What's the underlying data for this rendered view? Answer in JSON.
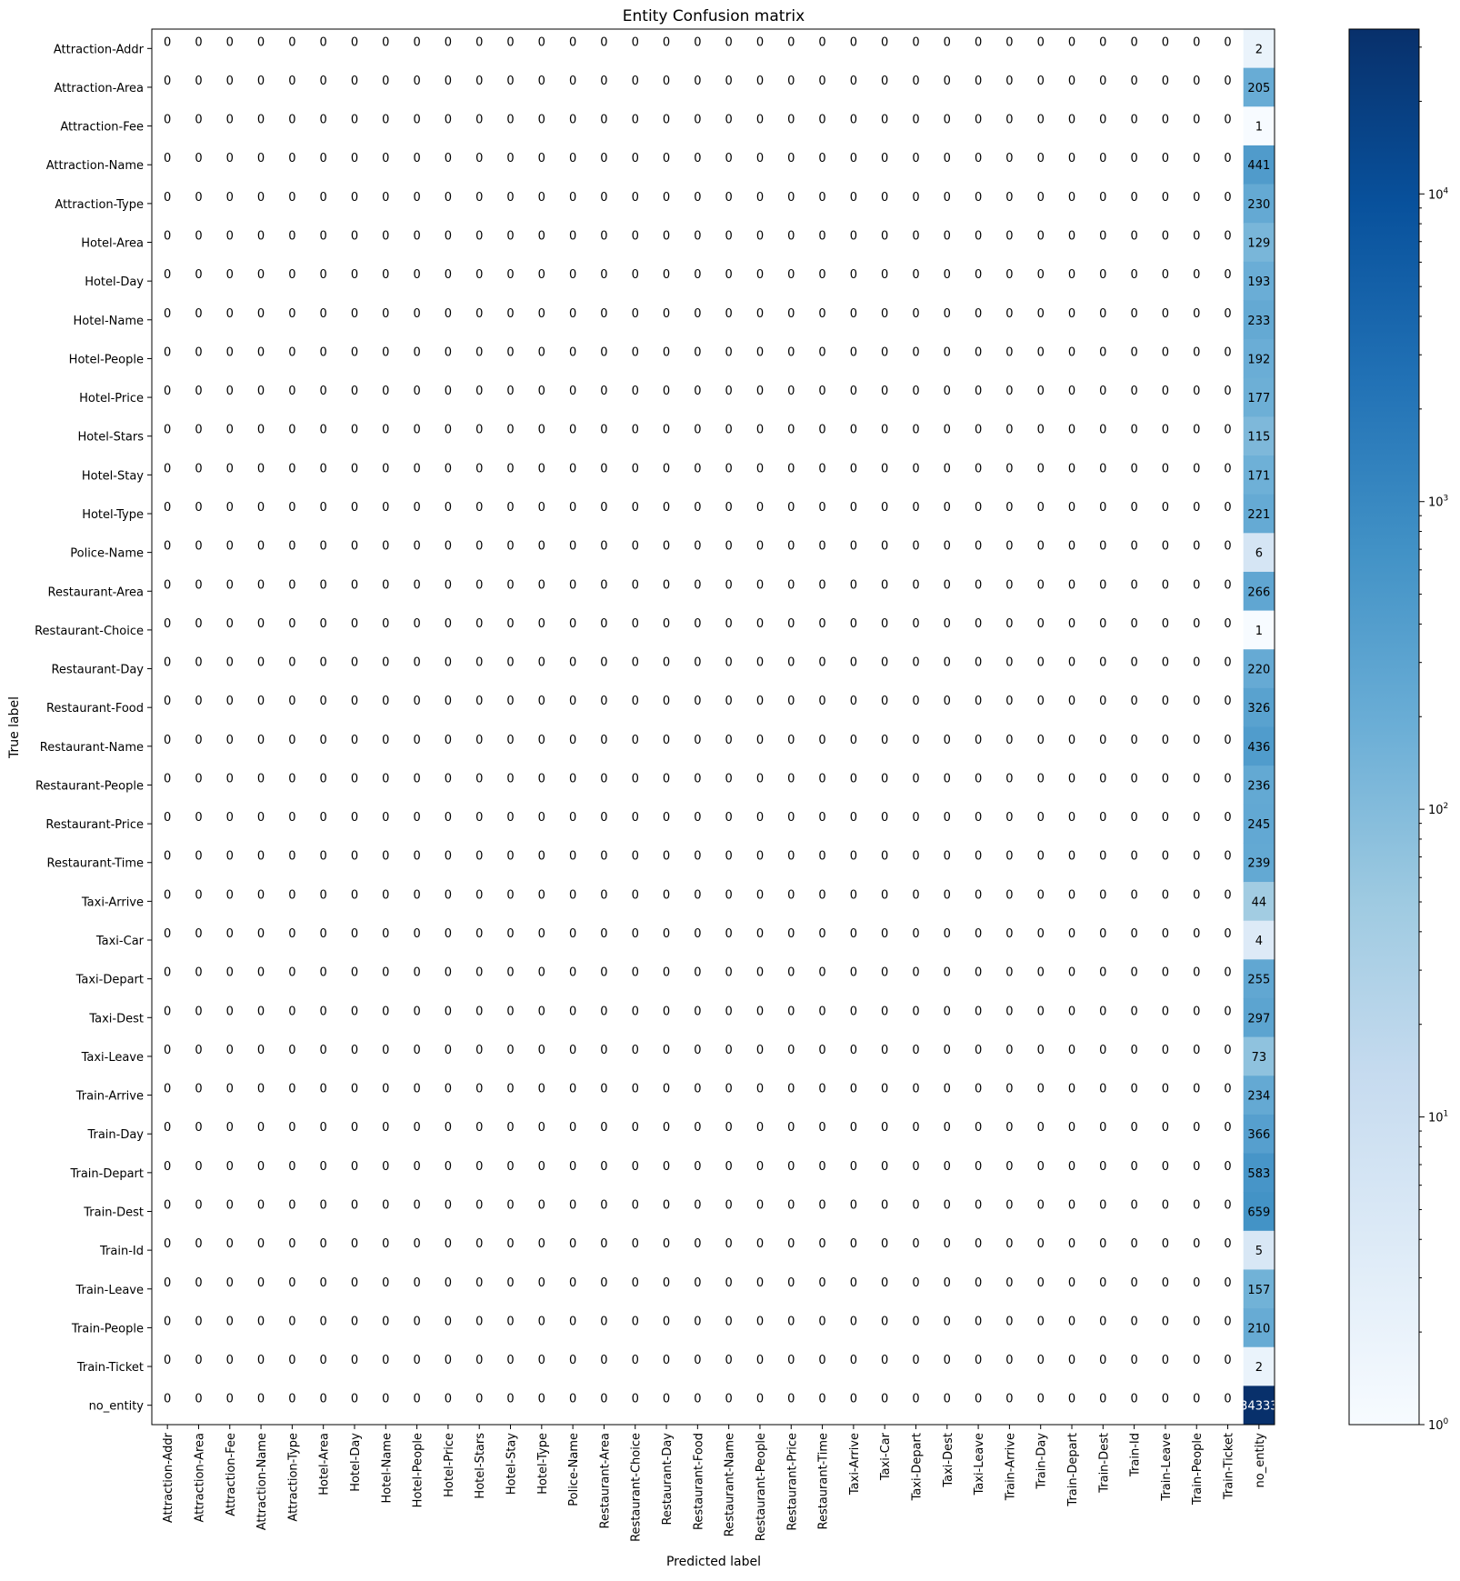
{
  "chart_data": {
    "type": "heatmap",
    "title": "Entity Confusion matrix",
    "xlabel": "Predicted label",
    "ylabel": "True label",
    "labels": [
      "Attraction-Addr",
      "Attraction-Area",
      "Attraction-Fee",
      "Attraction-Name",
      "Attraction-Type",
      "Hotel-Area",
      "Hotel-Day",
      "Hotel-Name",
      "Hotel-People",
      "Hotel-Price",
      "Hotel-Stars",
      "Hotel-Stay",
      "Hotel-Type",
      "Police-Name",
      "Restaurant-Area",
      "Restaurant-Choice",
      "Restaurant-Day",
      "Restaurant-Food",
      "Restaurant-Name",
      "Restaurant-People",
      "Restaurant-Price",
      "Restaurant-Time",
      "Taxi-Arrive",
      "Taxi-Car",
      "Taxi-Depart",
      "Taxi-Dest",
      "Taxi-Leave",
      "Train-Arrive",
      "Train-Day",
      "Train-Depart",
      "Train-Dest",
      "Train-Id",
      "Train-Leave",
      "Train-People",
      "Train-Ticket",
      "no_entity"
    ],
    "predicted_column": "no_entity",
    "other_cells_value": 0,
    "no_entity_counts": [
      2,
      205,
      1,
      441,
      230,
      129,
      193,
      233,
      192,
      177,
      115,
      171,
      221,
      6,
      266,
      1,
      220,
      326,
      436,
      236,
      245,
      239,
      44,
      4,
      255,
      297,
      73,
      234,
      366,
      583,
      659,
      5,
      157,
      210,
      2,
      34333
    ],
    "no_entity_cell_label_last": "34333",
    "colormap": "Blues",
    "color_scale": "log",
    "colorbar": {
      "range": [
        1,
        34333
      ],
      "ticks": [
        {
          "value": 1,
          "base": "10",
          "exp": "0"
        },
        {
          "value": 10,
          "base": "10",
          "exp": "1"
        },
        {
          "value": 100,
          "base": "10",
          "exp": "2"
        },
        {
          "value": 1000,
          "base": "10",
          "exp": "3"
        },
        {
          "value": 10000,
          "base": "10",
          "exp": "4"
        }
      ]
    },
    "grid": false
  }
}
